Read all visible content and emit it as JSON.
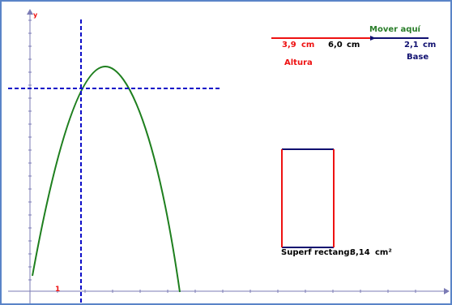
{
  "axis": {
    "y_label": "y",
    "x_tick_label": "1"
  },
  "slider": {
    "move_label": "Mover aquí",
    "altura_value": "3,9",
    "altura_unit": "cm",
    "total_value": "6,0",
    "total_unit": "cm",
    "altura_label": "Altura",
    "base_value": "2,1",
    "base_unit": "cm",
    "base_label": "Base",
    "split_fraction": 0.65
  },
  "rectangle": {
    "area_label": "Superf rectang:",
    "area_value": "8,14",
    "area_unit": "cm²"
  },
  "colors": {
    "curve": "#1e7f1e",
    "guide": "#0d0dc8",
    "altura": "#ee1111",
    "base": "#101070",
    "axis": "#7b7bb5",
    "move": "#2a7e2a",
    "window_border": "#5a84c8"
  },
  "icons": {
    "x_axis_arrow": "arrow-right-icon",
    "y_axis_arrow": "arrow-up-icon",
    "slider_handle": "slider-handle-icon"
  }
}
